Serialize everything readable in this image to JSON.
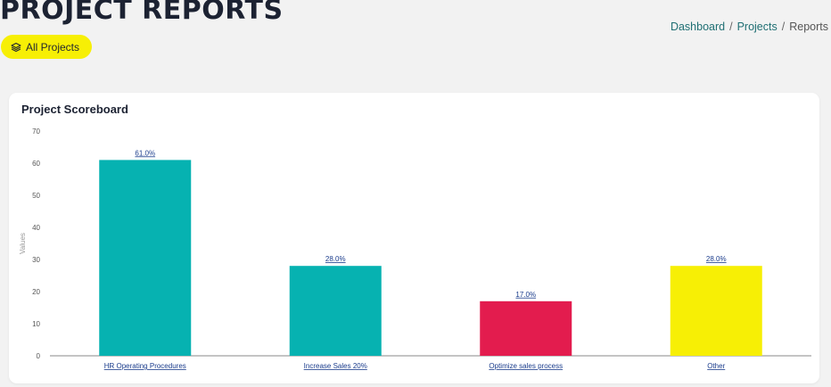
{
  "header": {
    "title": "PROJECT REPORTS",
    "filter_button": {
      "label": "All Projects",
      "icon": "layers-icon"
    }
  },
  "breadcrumb": [
    {
      "label": "Dashboard",
      "link": true
    },
    {
      "label": "Projects",
      "link": true
    },
    {
      "label": "Reports",
      "link": false
    }
  ],
  "card": {
    "title": "Project Scoreboard"
  },
  "chart_data": {
    "type": "bar",
    "title": "Project Scoreboard",
    "ylabel": "Values",
    "xlabel": "",
    "ylim": [
      0,
      70
    ],
    "yticks": [
      0,
      10,
      20,
      30,
      40,
      50,
      60,
      70
    ],
    "grid": false,
    "categories": [
      "HR Operating Procedures",
      "Increase Sales 20%",
      "Optimize sales process",
      "Other"
    ],
    "values": [
      61,
      28,
      17,
      28
    ],
    "data_labels": [
      "61.0%",
      "28.0%",
      "17.0%",
      "28.0%"
    ],
    "colors": [
      "#06b2b1",
      "#06b2b1",
      "#e31c4e",
      "#f7ef05"
    ]
  }
}
